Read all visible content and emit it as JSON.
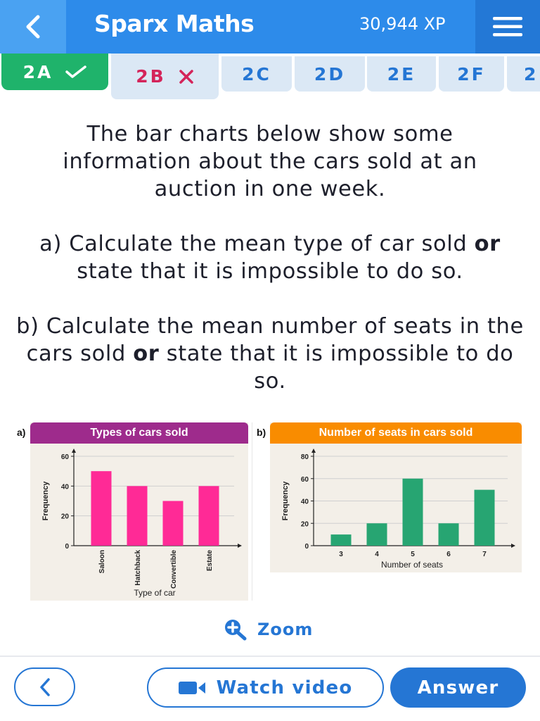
{
  "header": {
    "title": "Sparx Maths",
    "xp": "30,944 XP"
  },
  "tabs": [
    {
      "label": "2A",
      "status": "correct"
    },
    {
      "label": "2B",
      "status": "incorrect"
    },
    {
      "label": "2C",
      "status": ""
    },
    {
      "label": "2D",
      "status": ""
    },
    {
      "label": "2E",
      "status": ""
    },
    {
      "label": "2F",
      "status": ""
    },
    {
      "label": "2",
      "status": ""
    }
  ],
  "question": {
    "intro": "The bar charts below show some information about the cars sold at an auction in one week.",
    "part_a_pre": "a) Calculate the mean type of car sold",
    "part_a_or": "or",
    "part_a_post": "state that it is impossible to do so.",
    "part_b_pre": "b) Calculate the mean number of seats in the cars sold",
    "part_b_or": "or",
    "part_b_post": "state that it is impossible to do so."
  },
  "chart_data": [
    {
      "type": "bar",
      "label": "a)",
      "title": "Types of cars sold",
      "categories": [
        "Saloon",
        "Hatchback",
        "Convertible",
        "Estate"
      ],
      "values": [
        50,
        40,
        30,
        40
      ],
      "xlabel": "Type of car",
      "ylabel": "Frequency",
      "ylim": [
        0,
        60
      ],
      "yticks": [
        0,
        20,
        40,
        60
      ],
      "grid": true,
      "color": "#ff2a96",
      "header_color": "#9e2b8c"
    },
    {
      "type": "bar",
      "label": "b)",
      "title": "Number of seats in cars sold",
      "categories": [
        "3",
        "4",
        "5",
        "6",
        "7"
      ],
      "values": [
        10,
        20,
        60,
        20,
        50
      ],
      "xlabel": "Number of seats",
      "ylabel": "Frequency",
      "ylim": [
        0,
        80
      ],
      "yticks": [
        0,
        20,
        40,
        60,
        80
      ],
      "grid": true,
      "color": "#27a572",
      "header_color": "#f98c00"
    }
  ],
  "zoom_label": "Zoom",
  "footer": {
    "watch_video": "Watch video",
    "answer": "Answer"
  },
  "icons": {
    "back": "chevron-left-icon",
    "menu": "hamburger-menu-icon",
    "zoom": "zoom-in-icon",
    "video": "video-camera-icon",
    "check": "check-icon",
    "cross": "cross-icon"
  },
  "colors": {
    "brand_blue": "#2d8bea",
    "accent_blue": "#2576d4",
    "correct_green": "#1fb36b",
    "wrong_red": "#d4245a"
  }
}
